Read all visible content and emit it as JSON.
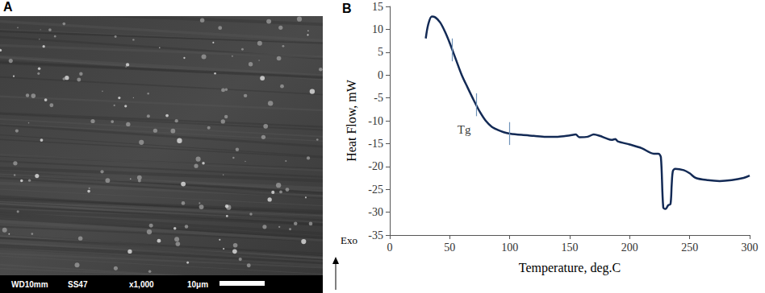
{
  "image": {
    "panel": "A",
    "info_bar": [
      "WD10mm",
      "SS47",
      "x1,000",
      "10μm"
    ]
  },
  "chart_data": {
    "type": "line",
    "panel": "B",
    "x_label": "Temperature, deg.C",
    "y_label": "Heat Flow, mW",
    "direction_label": "Exo",
    "x": [
      30,
      32,
      35,
      38,
      42,
      46,
      50,
      55,
      60,
      65,
      70,
      75,
      80,
      85,
      90,
      95,
      100,
      110,
      120,
      130,
      140,
      150,
      155,
      158,
      165,
      170,
      175,
      180,
      185,
      188,
      190,
      200,
      210,
      220,
      224,
      226,
      228,
      230,
      232,
      234,
      235,
      236,
      238,
      245,
      250,
      255,
      265,
      275,
      285,
      295,
      300
    ],
    "values": [
      8,
      11,
      12.8,
      12.6,
      11.5,
      9.5,
      7,
      3.5,
      0,
      -2.8,
      -5.5,
      -8,
      -10,
      -11.3,
      -12,
      -12.5,
      -12.8,
      -13.1,
      -13.3,
      -13.5,
      -13.5,
      -13.2,
      -13,
      -13.6,
      -13.5,
      -13,
      -13.3,
      -13.8,
      -14.2,
      -14,
      -14.5,
      -15.2,
      -16,
      -17.2,
      -17.2,
      -18,
      -29,
      -29.3,
      -28.5,
      -28.2,
      -24,
      -21,
      -20.5,
      -20.8,
      -21.5,
      -22.5,
      -23,
      -23.2,
      -23,
      -22.5,
      -22
    ],
    "color": "#132a55",
    "tg_markers": [
      {
        "x": 52,
        "y": 5.5
      },
      {
        "x": 72,
        "y": -6.5
      },
      {
        "x": 100,
        "y": -12.8
      }
    ],
    "marker_color": "#6f93b8",
    "annotations": [
      {
        "text": "Tg",
        "x": 62,
        "y": -12
      }
    ],
    "xlim": [
      0,
      300
    ],
    "xticks": [
      0,
      50,
      100,
      150,
      200,
      250,
      300
    ],
    "ylim": [
      -35,
      15
    ],
    "yticks": [
      -35,
      -30,
      -25,
      -20,
      -15,
      -10,
      -5,
      0,
      5,
      10,
      15
    ],
    "grid": false
  }
}
